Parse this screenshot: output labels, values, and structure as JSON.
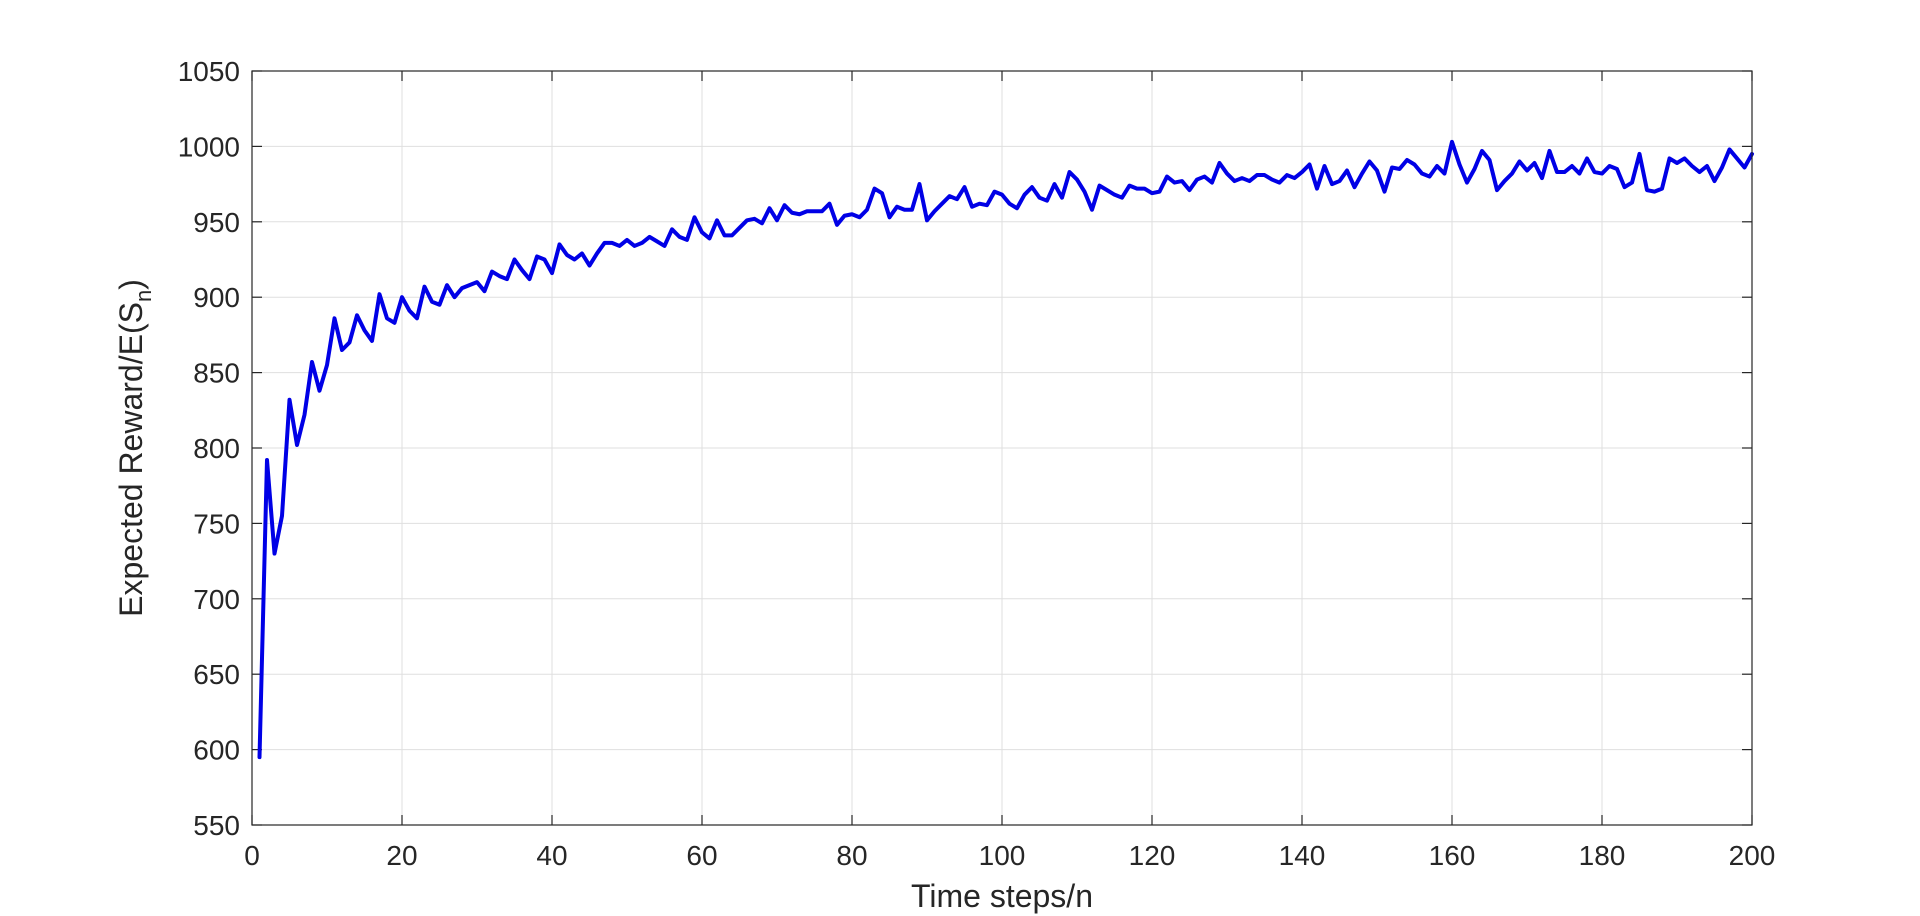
{
  "chart_data": {
    "type": "line",
    "title": "",
    "xlabel": "Time steps/n",
    "ylabel_main": "Expected Reward/E(S",
    "ylabel_sub": "n",
    "ylabel_close": ")",
    "xlim": [
      0,
      200
    ],
    "ylim": [
      550,
      1050
    ],
    "xticks": [
      0,
      20,
      40,
      60,
      80,
      100,
      120,
      140,
      160,
      180,
      200
    ],
    "yticks": [
      550,
      600,
      650,
      700,
      750,
      800,
      850,
      900,
      950,
      1000,
      1050
    ],
    "grid": true,
    "legend": "none",
    "series": [
      {
        "color": "#0000e6",
        "x": [
          1,
          2,
          3,
          4,
          5,
          6,
          7,
          8,
          9,
          10,
          11,
          12,
          13,
          14,
          15,
          16,
          17,
          18,
          19,
          20,
          21,
          22,
          23,
          24,
          25,
          26,
          27,
          28,
          29,
          30,
          31,
          32,
          33,
          34,
          35,
          36,
          37,
          38,
          39,
          40,
          41,
          42,
          43,
          44,
          45,
          46,
          47,
          48,
          49,
          50,
          51,
          52,
          53,
          54,
          55,
          56,
          57,
          58,
          59,
          60,
          61,
          62,
          63,
          64,
          65,
          66,
          67,
          68,
          69,
          70,
          71,
          72,
          73,
          74,
          75,
          76,
          77,
          78,
          79,
          80,
          81,
          82,
          83,
          84,
          85,
          86,
          87,
          88,
          89,
          90,
          91,
          92,
          93,
          94,
          95,
          96,
          97,
          98,
          99,
          100,
          101,
          102,
          103,
          104,
          105,
          106,
          107,
          108,
          109,
          110,
          111,
          112,
          113,
          114,
          115,
          116,
          117,
          118,
          119,
          120,
          121,
          122,
          123,
          124,
          125,
          126,
          127,
          128,
          129,
          130,
          131,
          132,
          133,
          134,
          135,
          136,
          137,
          138,
          139,
          140,
          141,
          142,
          143,
          144,
          145,
          146,
          147,
          148,
          149,
          150,
          151,
          152,
          153,
          154,
          155,
          156,
          157,
          158,
          159,
          160,
          161,
          162,
          163,
          164,
          165,
          166,
          167,
          168,
          169,
          170,
          171,
          172,
          173,
          174,
          175,
          176,
          177,
          178,
          179,
          180,
          181,
          182,
          183,
          184,
          185,
          186,
          187,
          188,
          189,
          190,
          191,
          192,
          193,
          194,
          195,
          196,
          197,
          198,
          199,
          200
        ],
        "y": [
          595,
          792,
          730,
          755,
          832,
          802,
          822,
          857,
          838,
          855,
          886,
          865,
          870,
          888,
          878,
          871,
          902,
          886,
          883,
          900,
          891,
          886,
          907,
          897,
          895,
          908,
          900,
          906,
          908,
          910,
          904,
          917,
          914,
          912,
          925,
          918,
          912,
          927,
          925,
          916,
          935,
          928,
          925,
          929,
          921,
          929,
          936,
          936,
          934,
          938,
          934,
          936,
          940,
          937,
          934,
          945,
          940,
          938,
          953,
          943,
          939,
          951,
          941,
          941,
          946,
          951,
          952,
          949,
          959,
          951,
          961,
          956,
          955,
          957,
          957,
          957,
          962,
          948,
          954,
          955,
          953,
          958,
          972,
          969,
          953,
          960,
          958,
          958,
          975,
          951,
          957,
          962,
          967,
          965,
          973,
          960,
          962,
          961,
          970,
          968,
          962,
          959,
          968,
          973,
          966,
          964,
          975,
          966,
          983,
          978,
          970,
          958,
          974,
          971,
          968,
          966,
          974,
          972,
          972,
          969,
          970,
          980,
          976,
          977,
          971,
          978,
          980,
          976,
          989,
          982,
          977,
          979,
          977,
          981,
          981,
          978,
          976,
          981,
          979,
          983,
          988,
          972,
          987,
          975,
          977,
          984,
          973,
          982,
          990,
          984,
          970,
          986,
          985,
          991,
          988,
          982,
          980,
          987,
          982,
          1003,
          988,
          976,
          985,
          997,
          991,
          971,
          977,
          982,
          990,
          984,
          989,
          979,
          997,
          983,
          983,
          987,
          982,
          992,
          983,
          982,
          987,
          985,
          973,
          976,
          995,
          971,
          970,
          972,
          992,
          989,
          992,
          987,
          983,
          987,
          977,
          986,
          998,
          992,
          986,
          995
        ]
      }
    ]
  }
}
